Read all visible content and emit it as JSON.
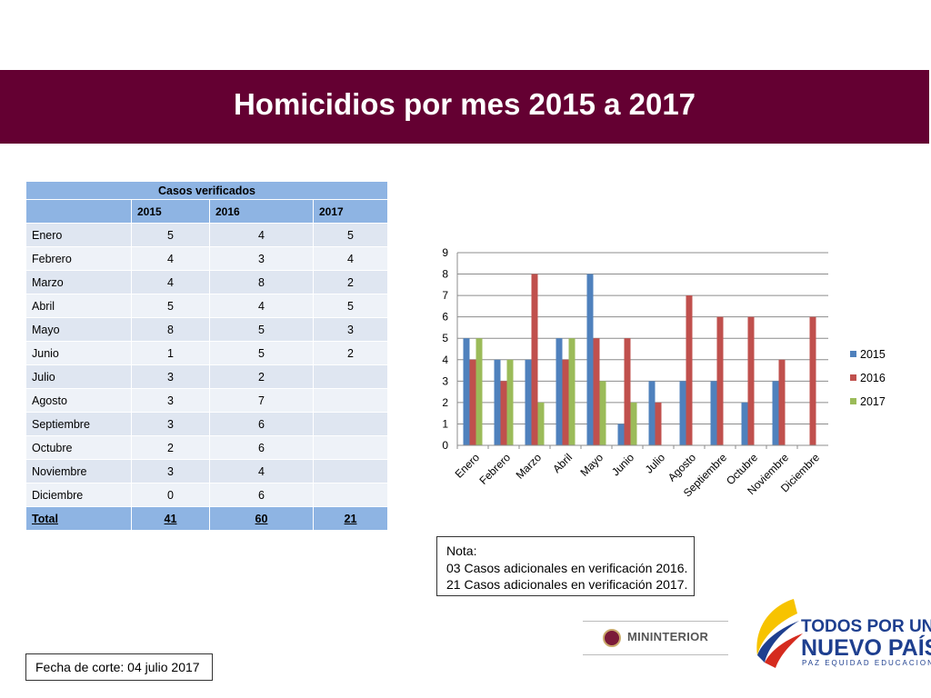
{
  "title": "Homicidios por mes 2015 a 2017",
  "table": {
    "caption": "Casos verificados",
    "columns": [
      "",
      "2015",
      "2016",
      "2017"
    ],
    "rows": [
      [
        "Enero",
        "5",
        "4",
        "5"
      ],
      [
        "Febrero",
        "4",
        "3",
        "4"
      ],
      [
        "Marzo",
        "4",
        "8",
        "2"
      ],
      [
        "Abril",
        "5",
        "4",
        "5"
      ],
      [
        "Mayo",
        "8",
        "5",
        "3"
      ],
      [
        "Junio",
        "1",
        "5",
        "2"
      ],
      [
        "Julio",
        "3",
        "2",
        ""
      ],
      [
        "Agosto",
        "3",
        "7",
        ""
      ],
      [
        "Septiembre",
        "3",
        "6",
        ""
      ],
      [
        "Octubre",
        "2",
        "6",
        ""
      ],
      [
        "Noviembre",
        "3",
        "4",
        ""
      ],
      [
        "Diciembre",
        "0",
        "6",
        ""
      ]
    ],
    "total": [
      "Total",
      "41",
      "60",
      "21"
    ]
  },
  "chart_data": {
    "type": "bar",
    "title": "",
    "xlabel": "",
    "ylabel": "",
    "ylim": [
      0,
      9
    ],
    "yticks": [
      0,
      1,
      2,
      3,
      4,
      5,
      6,
      7,
      8,
      9
    ],
    "grid": true,
    "legend_position": "right",
    "categories": [
      "Enero",
      "Febrero",
      "Marzo",
      "Abril",
      "Mayo",
      "Junio",
      "Julio",
      "Agosto",
      "Septiembre",
      "Octubre",
      "Noviembre",
      "Diciembre"
    ],
    "series": [
      {
        "name": "2015",
        "color": "#4f81bd",
        "values": [
          5,
          4,
          4,
          5,
          8,
          1,
          3,
          3,
          3,
          2,
          3,
          0
        ]
      },
      {
        "name": "2016",
        "color": "#c0504d",
        "values": [
          4,
          3,
          8,
          4,
          5,
          5,
          2,
          7,
          6,
          6,
          4,
          6
        ]
      },
      {
        "name": "2017",
        "color": "#9bbb59",
        "values": [
          5,
          4,
          2,
          5,
          3,
          2,
          null,
          null,
          null,
          null,
          null,
          null
        ]
      }
    ]
  },
  "note": {
    "lines": [
      "Nota:",
      "03 Casos adicionales en verificación 2016.",
      "21 Casos adicionales en verificación 2017."
    ]
  },
  "cutoff": "Fecha de corte: 04 julio 2017",
  "logos": {
    "mininterior": "MININTERIOR",
    "todos_line1": "TODOS POR UN",
    "todos_line2": "NUEVO PAÍS",
    "todos_line3": "PAZ  EQUIDAD  EDUCACION"
  }
}
